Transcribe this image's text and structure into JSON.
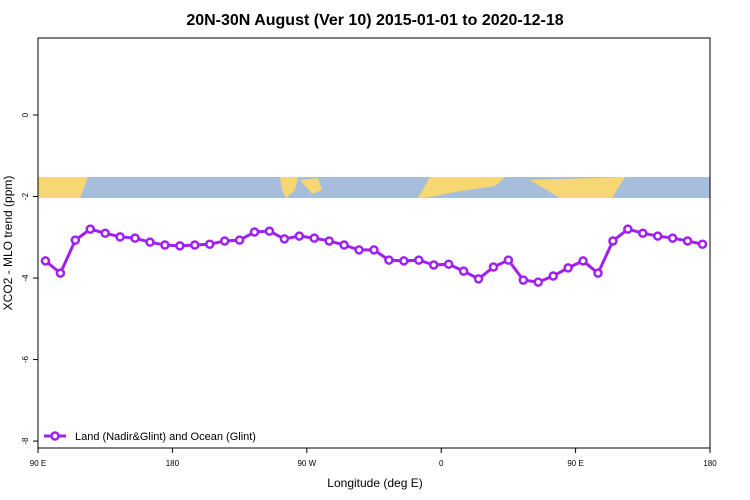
{
  "chart_data": {
    "type": "line",
    "title": "20N-30N August (Ver 10)   2015-01-01 to 2020-12-18",
    "x_label": "Longitude (deg E)",
    "y_label": "XCO2 - MLO trend (ppm)",
    "xlim": [
      90,
      540
    ],
    "xticks": [
      {
        "value": 90,
        "label": "90 E"
      },
      {
        "value": 180,
        "label": "180"
      },
      {
        "value": 270,
        "label": "90 W"
      },
      {
        "value": 360,
        "label": "0"
      },
      {
        "value": 450,
        "label": "90 E"
      },
      {
        "value": 540,
        "label": "180"
      }
    ],
    "ylim": [
      -8.17,
      1.89
    ],
    "yticks": [
      -8,
      -6,
      -4,
      -2,
      0
    ],
    "legend_position": "lower-left",
    "x": [
      95,
      105,
      115,
      125,
      135,
      145,
      155,
      165,
      175,
      185,
      195,
      205,
      215,
      225,
      235,
      245,
      255,
      265,
      275,
      285,
      295,
      305,
      315,
      325,
      335,
      345,
      355,
      365,
      375,
      385,
      395,
      405,
      415,
      425,
      435,
      445,
      455,
      465,
      475,
      485,
      495,
      505,
      515,
      525,
      535
    ],
    "series": [
      {
        "name": "Land (Nadir&Glint) and Ocean (Glint)",
        "color": "#a020f0",
        "values": [
          -3.58,
          -3.88,
          -3.07,
          -2.8,
          -2.9,
          -2.99,
          -3.02,
          -3.12,
          -3.19,
          -3.21,
          -3.19,
          -3.17,
          -3.09,
          -3.07,
          -2.87,
          -2.85,
          -3.04,
          -2.97,
          -3.02,
          -3.09,
          -3.19,
          -3.31,
          -3.31,
          -3.56,
          -3.58,
          -3.56,
          -3.68,
          -3.66,
          -3.83,
          -4.02,
          -3.73,
          -3.56,
          -4.05,
          -4.1,
          -3.95,
          -3.75,
          -3.58,
          -3.88,
          -3.09,
          -2.8,
          -2.9,
          -2.97,
          -3.02,
          -3.09,
          -3.17
        ]
      }
    ]
  }
}
